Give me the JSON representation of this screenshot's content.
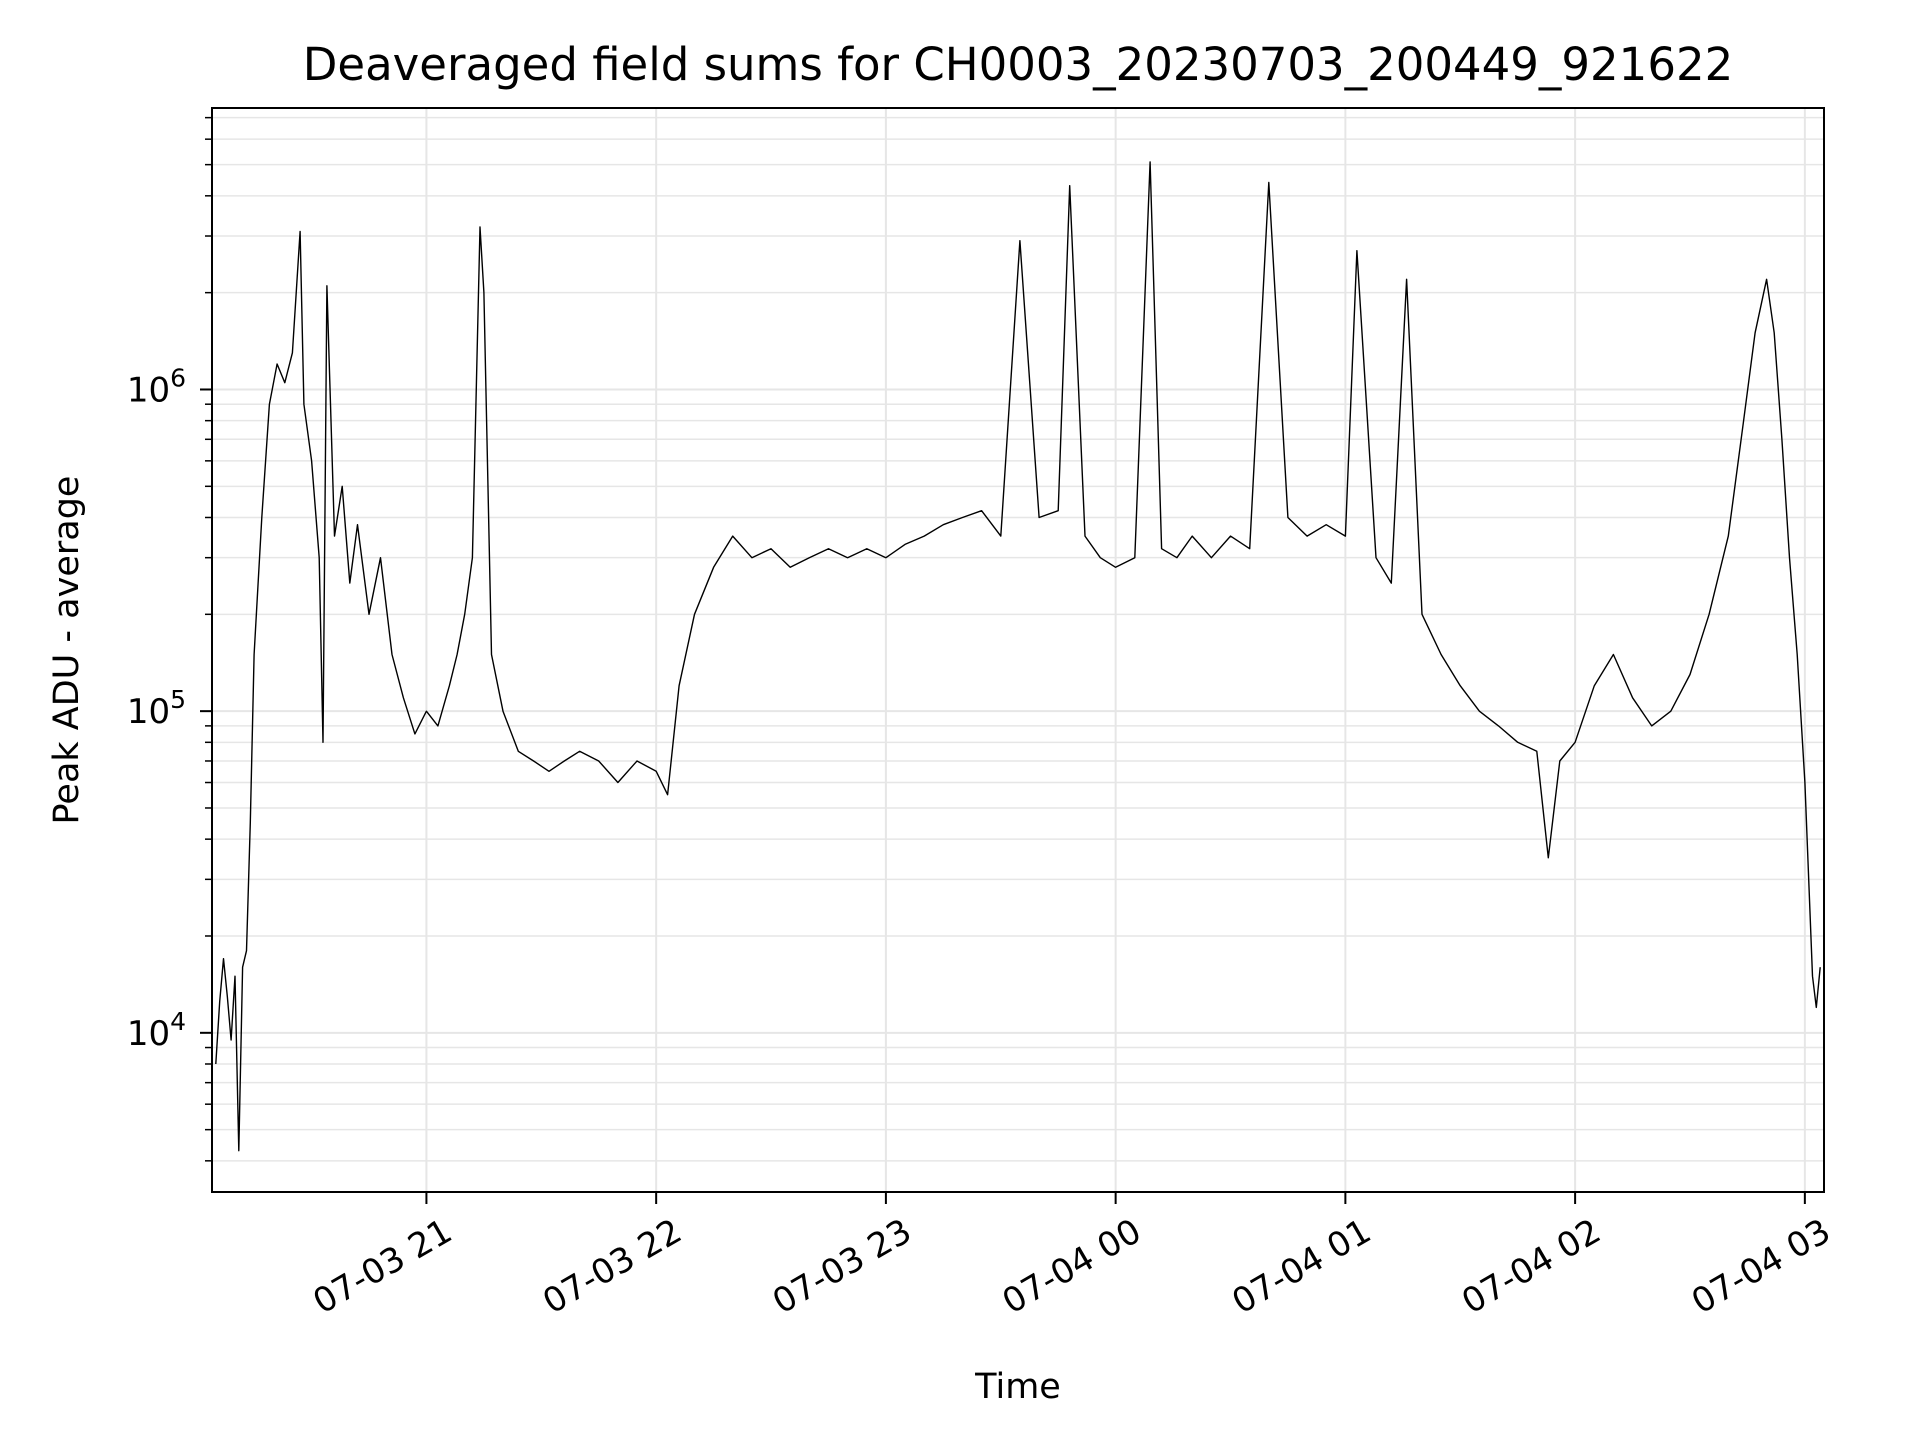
{
  "chart_data": {
    "type": "line",
    "title": "Deaveraged field sums for CH0003_20230703_200449_921622",
    "xlabel": "Time",
    "ylabel": "Peak ADU - average",
    "yscale": "log",
    "ylim": [
      3200,
      7500000
    ],
    "xlim": [
      "07-03 20:04:49",
      "07-04 03:05:00"
    ],
    "grid": true,
    "series_color": "#000000",
    "grid_color": "#e6e6e6",
    "x_ticks": [
      {
        "label": "07-03 21",
        "time": "07-03 21:00"
      },
      {
        "label": "07-03 22",
        "time": "07-03 22:00"
      },
      {
        "label": "07-03 23",
        "time": "07-03 23:00"
      },
      {
        "label": "07-04 00",
        "time": "07-04 00:00"
      },
      {
        "label": "07-04 01",
        "time": "07-04 01:00"
      },
      {
        "label": "07-04 02",
        "time": "07-04 02:00"
      },
      {
        "label": "07-04 03",
        "time": "07-04 03:00"
      }
    ],
    "y_ticks": [
      {
        "base": "10",
        "exp": "4",
        "value": 10000
      },
      {
        "base": "10",
        "exp": "5",
        "value": 100000
      },
      {
        "base": "10",
        "exp": "6",
        "value": 1000000
      }
    ],
    "series": [
      {
        "points": [
          [
            "07-03 20:05",
            8000
          ],
          [
            "07-03 20:06",
            12500
          ],
          [
            "07-03 20:07",
            17000
          ],
          [
            "07-03 20:08",
            13000
          ],
          [
            "07-03 20:09",
            9500
          ],
          [
            "07-03 20:10",
            15000
          ],
          [
            "07-03 20:11",
            4300
          ],
          [
            "07-03 20:12",
            16000
          ],
          [
            "07-03 20:13",
            18000
          ],
          [
            "07-03 20:14",
            45000
          ],
          [
            "07-03 20:15",
            150000
          ],
          [
            "07-03 20:17",
            400000
          ],
          [
            "07-03 20:19",
            900000
          ],
          [
            "07-03 20:21",
            1200000
          ],
          [
            "07-03 20:23",
            1050000
          ],
          [
            "07-03 20:25",
            1300000
          ],
          [
            "07-03 20:27",
            3100000
          ],
          [
            "07-03 20:28",
            900000
          ],
          [
            "07-03 20:30",
            600000
          ],
          [
            "07-03 20:32",
            300000
          ],
          [
            "07-03 20:33",
            80000
          ],
          [
            "07-03 20:34",
            2100000
          ],
          [
            "07-03 20:36",
            350000
          ],
          [
            "07-03 20:38",
            500000
          ],
          [
            "07-03 20:40",
            250000
          ],
          [
            "07-03 20:42",
            380000
          ],
          [
            "07-03 20:45",
            200000
          ],
          [
            "07-03 20:48",
            300000
          ],
          [
            "07-03 20:51",
            150000
          ],
          [
            "07-03 20:54",
            110000
          ],
          [
            "07-03 20:57",
            85000
          ],
          [
            "07-03 21:00",
            100000
          ],
          [
            "07-03 21:03",
            90000
          ],
          [
            "07-03 21:06",
            120000
          ],
          [
            "07-03 21:08",
            150000
          ],
          [
            "07-03 21:10",
            200000
          ],
          [
            "07-03 21:12",
            300000
          ],
          [
            "07-03 21:14",
            3200000
          ],
          [
            "07-03 21:15",
            2000000
          ],
          [
            "07-03 21:17",
            150000
          ],
          [
            "07-03 21:20",
            100000
          ],
          [
            "07-03 21:24",
            75000
          ],
          [
            "07-03 21:28",
            70000
          ],
          [
            "07-03 21:32",
            65000
          ],
          [
            "07-03 21:36",
            70000
          ],
          [
            "07-03 21:40",
            75000
          ],
          [
            "07-03 21:45",
            70000
          ],
          [
            "07-03 21:50",
            60000
          ],
          [
            "07-03 21:55",
            70000
          ],
          [
            "07-03 22:00",
            65000
          ],
          [
            "07-03 22:03",
            55000
          ],
          [
            "07-03 22:06",
            120000
          ],
          [
            "07-03 22:10",
            200000
          ],
          [
            "07-03 22:15",
            280000
          ],
          [
            "07-03 22:20",
            350000
          ],
          [
            "07-03 22:25",
            300000
          ],
          [
            "07-03 22:30",
            320000
          ],
          [
            "07-03 22:35",
            280000
          ],
          [
            "07-03 22:40",
            300000
          ],
          [
            "07-03 22:45",
            320000
          ],
          [
            "07-03 22:50",
            300000
          ],
          [
            "07-03 22:55",
            320000
          ],
          [
            "07-03 23:00",
            300000
          ],
          [
            "07-03 23:05",
            330000
          ],
          [
            "07-03 23:10",
            350000
          ],
          [
            "07-03 23:15",
            380000
          ],
          [
            "07-03 23:20",
            400000
          ],
          [
            "07-03 23:25",
            420000
          ],
          [
            "07-03 23:30",
            350000
          ],
          [
            "07-03 23:35",
            2900000
          ],
          [
            "07-03 23:40",
            400000
          ],
          [
            "07-03 23:45",
            420000
          ],
          [
            "07-03 23:48",
            4300000
          ],
          [
            "07-03 23:52",
            350000
          ],
          [
            "07-03 23:56",
            300000
          ],
          [
            "07-04 00:00",
            280000
          ],
          [
            "07-04 00:05",
            300000
          ],
          [
            "07-04 00:09",
            5100000
          ],
          [
            "07-04 00:12",
            320000
          ],
          [
            "07-04 00:16",
            300000
          ],
          [
            "07-04 00:20",
            350000
          ],
          [
            "07-04 00:25",
            300000
          ],
          [
            "07-04 00:30",
            350000
          ],
          [
            "07-04 00:35",
            320000
          ],
          [
            "07-04 00:40",
            4400000
          ],
          [
            "07-04 00:45",
            400000
          ],
          [
            "07-04 00:50",
            350000
          ],
          [
            "07-04 00:55",
            380000
          ],
          [
            "07-04 01:00",
            350000
          ],
          [
            "07-04 01:03",
            2700000
          ],
          [
            "07-04 01:08",
            300000
          ],
          [
            "07-04 01:12",
            250000
          ],
          [
            "07-04 01:16",
            2200000
          ],
          [
            "07-04 01:20",
            200000
          ],
          [
            "07-04 01:25",
            150000
          ],
          [
            "07-04 01:30",
            120000
          ],
          [
            "07-04 01:35",
            100000
          ],
          [
            "07-04 01:40",
            90000
          ],
          [
            "07-04 01:45",
            80000
          ],
          [
            "07-04 01:50",
            75000
          ],
          [
            "07-04 01:53",
            35000
          ],
          [
            "07-04 01:56",
            70000
          ],
          [
            "07-04 02:00",
            80000
          ],
          [
            "07-04 02:05",
            120000
          ],
          [
            "07-04 02:10",
            150000
          ],
          [
            "07-04 02:15",
            110000
          ],
          [
            "07-04 02:20",
            90000
          ],
          [
            "07-04 02:25",
            100000
          ],
          [
            "07-04 02:30",
            130000
          ],
          [
            "07-04 02:35",
            200000
          ],
          [
            "07-04 02:40",
            350000
          ],
          [
            "07-04 02:44",
            800000
          ],
          [
            "07-04 02:47",
            1500000
          ],
          [
            "07-04 02:50",
            2200000
          ],
          [
            "07-04 02:52",
            1500000
          ],
          [
            "07-04 02:54",
            700000
          ],
          [
            "07-04 02:56",
            300000
          ],
          [
            "07-04 02:58",
            150000
          ],
          [
            "07-04 03:00",
            60000
          ],
          [
            "07-04 03:01",
            30000
          ],
          [
            "07-04 03:02",
            15000
          ],
          [
            "07-04 03:03",
            12000
          ],
          [
            "07-04 03:04",
            16000
          ]
        ]
      }
    ]
  }
}
